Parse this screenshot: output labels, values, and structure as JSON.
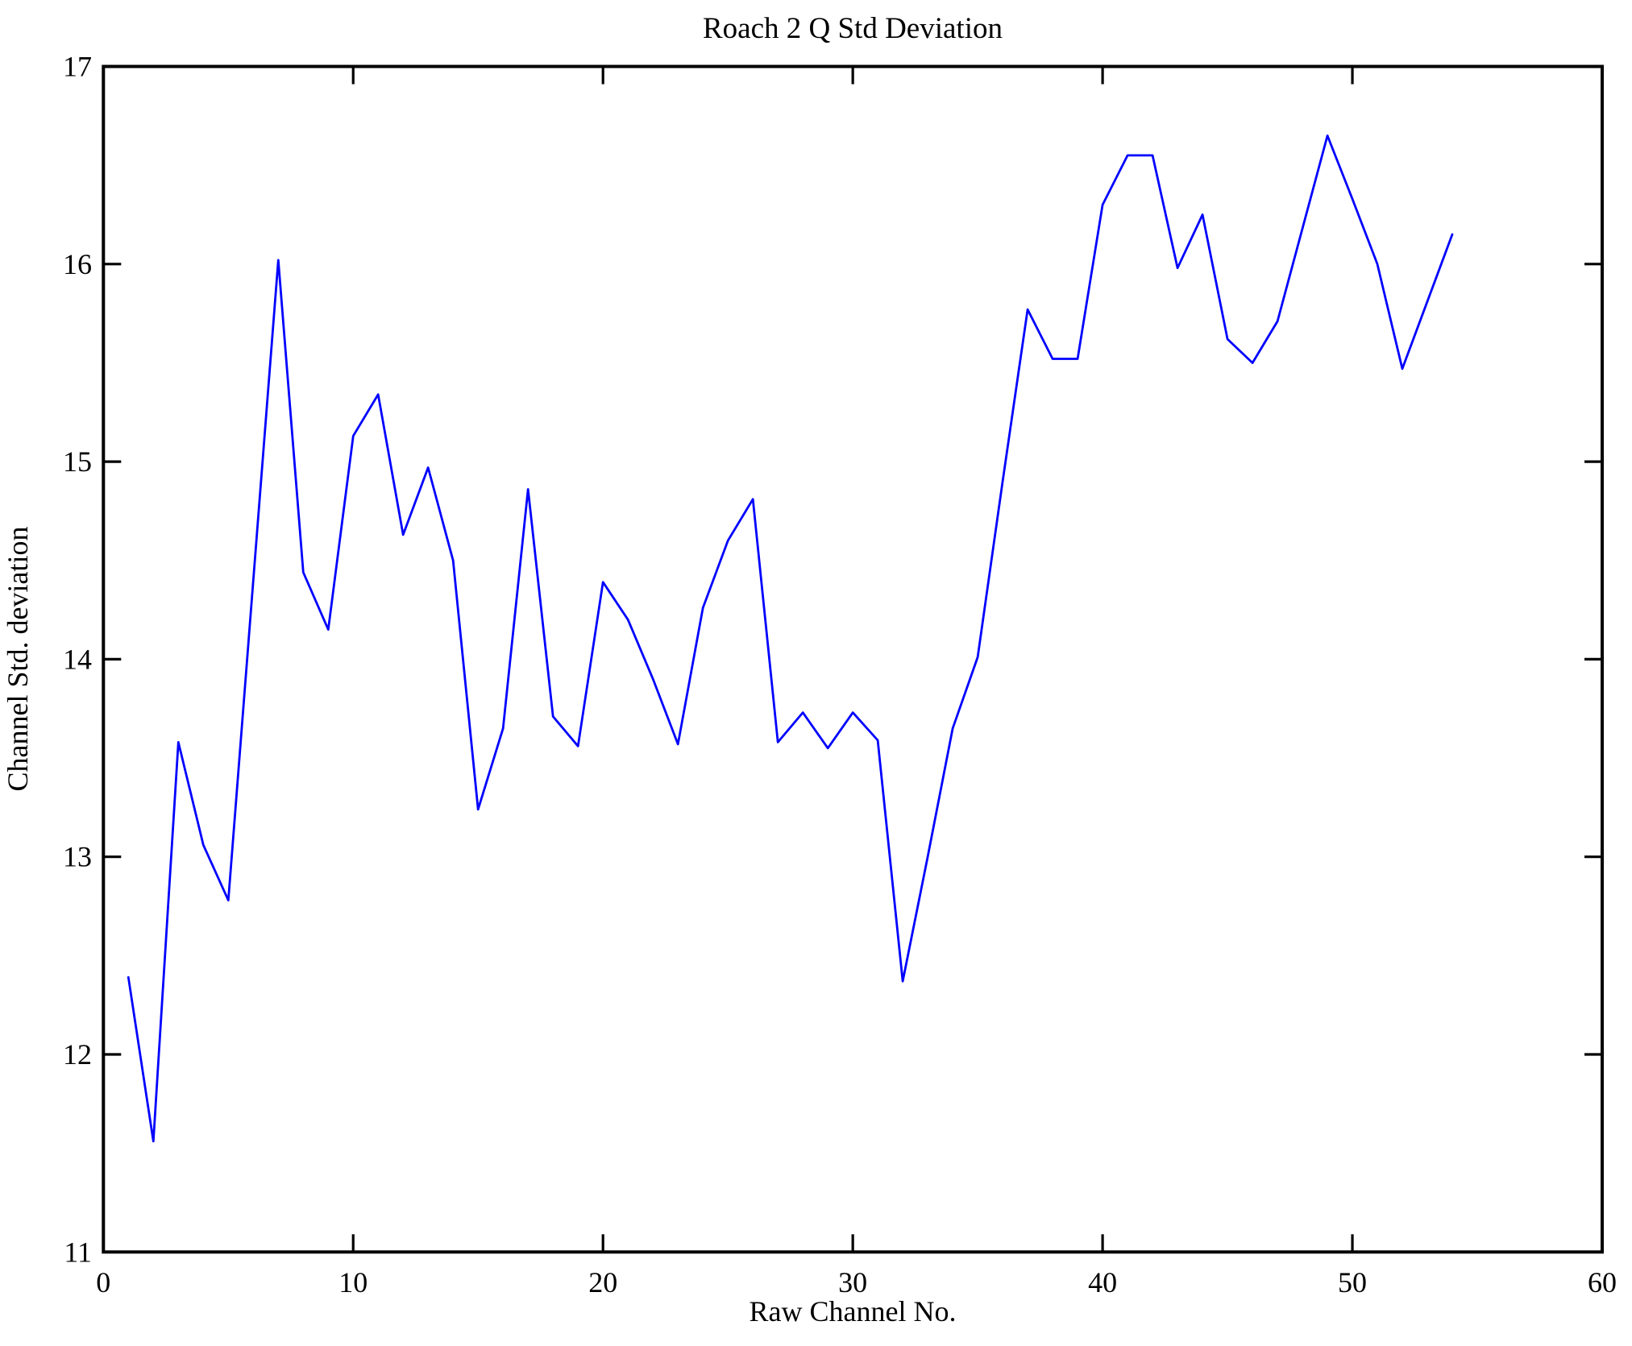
{
  "figure": {
    "background": "#ffffff",
    "frame_color": "#000000"
  },
  "chart_data": {
    "type": "line",
    "title": "Roach 2 Q Std Deviation",
    "xlabel": "Raw Channel No.",
    "ylabel": "Channel Std. deviation",
    "xlim": [
      0,
      60
    ],
    "ylim": [
      11,
      17
    ],
    "x_ticks": [
      0,
      10,
      20,
      30,
      40,
      50,
      60
    ],
    "y_ticks": [
      11,
      12,
      13,
      14,
      15,
      16,
      17
    ],
    "grid": "off",
    "legend": "none",
    "line_color": "#0000ff",
    "series_name": "Channel Std. deviation",
    "x": [
      1,
      2,
      3,
      4,
      5,
      6,
      7,
      8,
      9,
      10,
      11,
      12,
      13,
      14,
      15,
      16,
      17,
      18,
      19,
      20,
      21,
      22,
      23,
      24,
      25,
      26,
      27,
      28,
      29,
      30,
      31,
      32,
      33,
      34,
      35,
      36,
      37,
      38,
      39,
      40,
      41,
      42,
      43,
      44,
      45,
      46,
      47,
      48,
      49,
      50,
      51,
      52,
      53,
      54
    ],
    "y": [
      12.39,
      11.56,
      13.58,
      13.06,
      12.78,
      14.4,
      16.02,
      14.44,
      14.15,
      15.13,
      15.34,
      14.63,
      14.97,
      14.5,
      13.24,
      13.65,
      14.86,
      13.71,
      13.56,
      14.39,
      14.2,
      13.9,
      13.57,
      14.26,
      14.6,
      14.81,
      13.58,
      13.73,
      13.55,
      13.73,
      13.59,
      12.37,
      13.0,
      13.65,
      14.01,
      14.9,
      15.77,
      15.52,
      15.52,
      16.3,
      16.55,
      16.55,
      15.98,
      16.25,
      15.62,
      15.5,
      15.71,
      16.18,
      16.65,
      16.33,
      16.0,
      15.47,
      15.81,
      16.15
    ]
  }
}
